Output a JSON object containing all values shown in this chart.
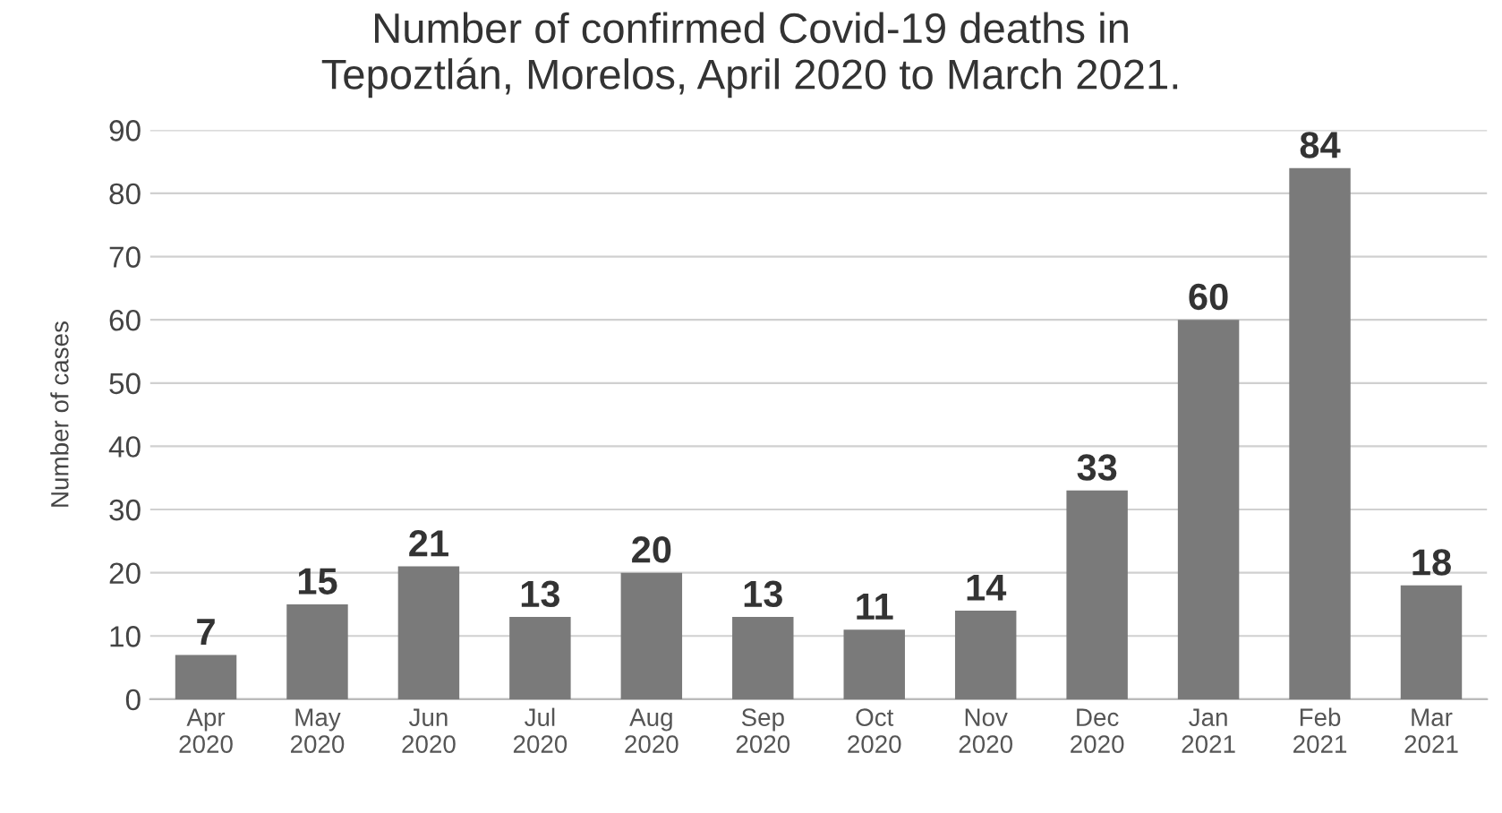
{
  "chart_data": {
    "type": "bar",
    "title": "Number of confirmed Covid-19 deaths in\nTepoztlán, Morelos, April 2020 to March 2021.",
    "ylabel": "Number of cases",
    "categories": [
      "Apr\n2020",
      "May\n2020",
      "Jun\n2020",
      "Jul\n2020",
      "Aug\n2020",
      "Sep\n2020",
      "Oct\n2020",
      "Nov\n2020",
      "Dec\n2020",
      "Jan\n2021",
      "Feb\n2021",
      "Mar\n2021"
    ],
    "values": [
      7,
      15,
      21,
      13,
      20,
      13,
      11,
      14,
      33,
      60,
      84,
      18
    ],
    "color": "#7a7a7a",
    "ylim": [
      0,
      90
    ],
    "yticks": [
      0,
      10,
      20,
      30,
      40,
      50,
      60,
      70,
      80,
      90
    ],
    "grid": "y",
    "data_labels": true
  }
}
